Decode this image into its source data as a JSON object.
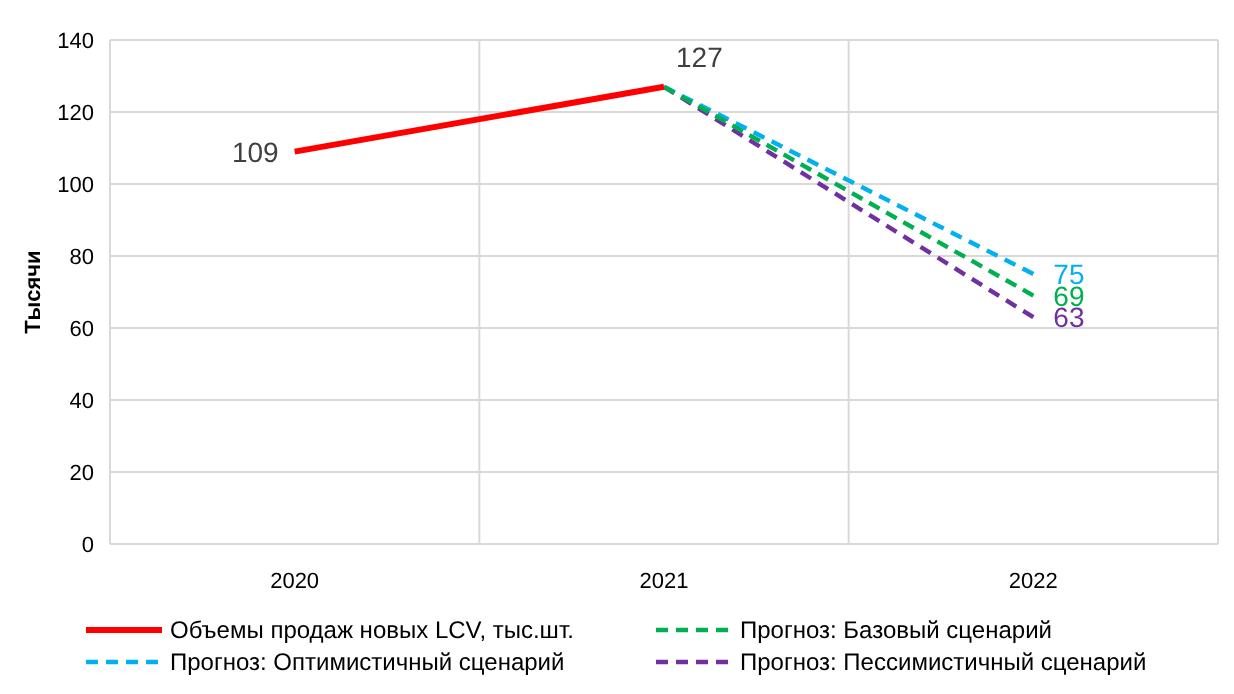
{
  "chart_data": {
    "type": "line",
    "ylabel": "Тысячи",
    "categories": [
      "2020",
      "2021",
      "2022"
    ],
    "series": [
      {
        "name": "Объемы продаж новых LCV, тыс.шт.",
        "color": "#ff0000",
        "line_style": "solid",
        "values": [
          109,
          127,
          null
        ],
        "value_labels": [
          "109",
          "127",
          null
        ]
      },
      {
        "name": "Прогноз: Базовый сценарий",
        "color": "#00b050",
        "line_style": "dashed",
        "values": [
          null,
          127,
          69
        ],
        "value_labels": [
          null,
          null,
          "69"
        ]
      },
      {
        "name": "Прогноз: Оптимистичный сценарий",
        "color": "#00b0f0",
        "line_style": "dashed",
        "values": [
          null,
          127,
          75
        ],
        "value_labels": [
          null,
          null,
          "75"
        ]
      },
      {
        "name": "Прогноз: Пессимистичный сценарий",
        "color": "#7030a0",
        "line_style": "dashed",
        "values": [
          null,
          127,
          63
        ],
        "value_labels": [
          null,
          null,
          "63"
        ]
      }
    ],
    "ylim": [
      0,
      140
    ],
    "yticks": [
      0,
      20,
      40,
      60,
      80,
      100,
      120,
      140
    ],
    "grid": true,
    "legend": "bottom",
    "marker": "none"
  }
}
